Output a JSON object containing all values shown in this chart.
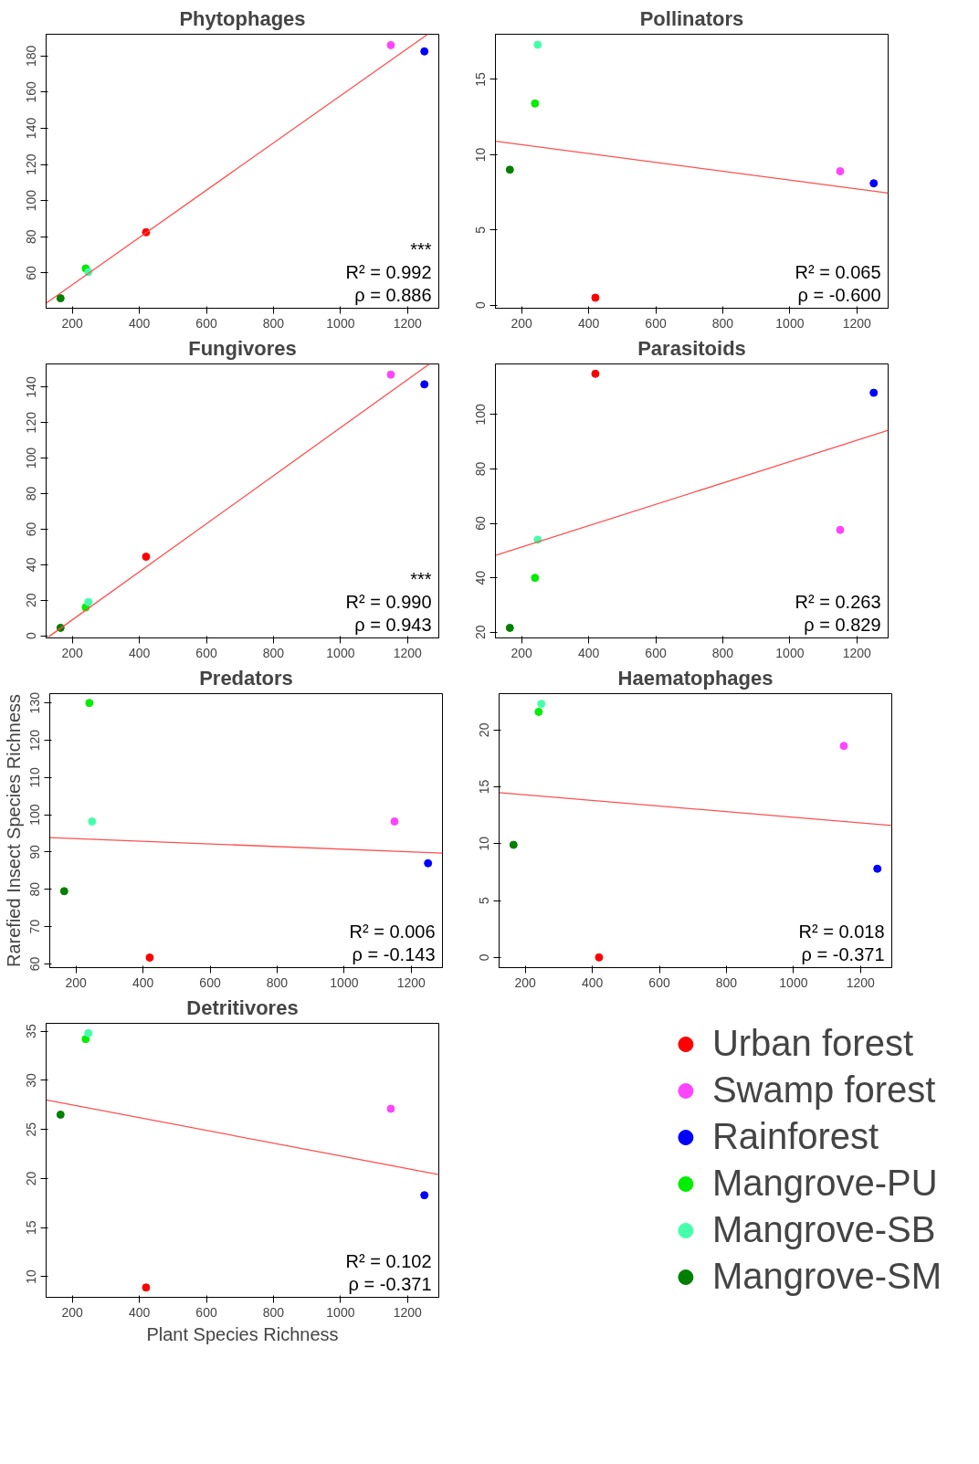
{
  "chart_data": [
    {
      "type": "scatter",
      "title": "Phytophages",
      "marker": "circle",
      "line_style": "solid",
      "xlim": [
        122,
        1293
      ],
      "ylim": [
        40.5,
        192
      ],
      "xticks": [
        200,
        400,
        600,
        800,
        1000,
        1200
      ],
      "yticks": [
        60,
        80,
        100,
        120,
        140,
        160,
        180
      ],
      "annotations": [
        "***",
        "R² = 0.992",
        "ρ = 0.886"
      ],
      "series": [
        {
          "color": "#ff0000",
          "x": [
            420
          ],
          "values": [
            82.5
          ]
        },
        {
          "color": "#ff44ff",
          "x": [
            1150
          ],
          "values": [
            186
          ]
        },
        {
          "color": "#0000ff",
          "x": [
            1250
          ],
          "values": [
            182.5
          ]
        },
        {
          "color": "#00ee00",
          "x": [
            240
          ],
          "values": [
            62.5
          ]
        },
        {
          "color": "#44ffaa",
          "x": [
            248
          ],
          "values": [
            60.5
          ]
        },
        {
          "color": "#008000",
          "x": [
            165
          ],
          "values": [
            46
          ]
        },
        {
          "type": "line",
          "marker": "none",
          "color": "#ff5050",
          "x": [
            122,
            1260
          ],
          "values": [
            43.3,
            192
          ]
        }
      ]
    },
    {
      "type": "scatter",
      "title": "Pollinators",
      "marker": "circle",
      "line_style": "solid",
      "xlim": [
        122,
        1293
      ],
      "ylim": [
        -0.2,
        18
      ],
      "xticks": [
        200,
        400,
        600,
        800,
        1000,
        1200
      ],
      "yticks": [
        0,
        5,
        10,
        15
      ],
      "annotations": [
        "R² = 0.065",
        "ρ = -0.600"
      ],
      "series": [
        {
          "color": "#ff0000",
          "x": [
            420
          ],
          "values": [
            0.5
          ]
        },
        {
          "color": "#ff44ff",
          "x": [
            1150
          ],
          "values": [
            8.9
          ]
        },
        {
          "color": "#0000ff",
          "x": [
            1250
          ],
          "values": [
            8.1
          ]
        },
        {
          "color": "#00ee00",
          "x": [
            240
          ],
          "values": [
            13.4
          ]
        },
        {
          "color": "#44ffaa",
          "x": [
            248
          ],
          "values": [
            17.3
          ]
        },
        {
          "color": "#008000",
          "x": [
            165
          ],
          "values": [
            9.0
          ]
        },
        {
          "type": "line",
          "marker": "none",
          "color": "#ff5050",
          "x": [
            122,
            1293
          ],
          "values": [
            10.9,
            7.45
          ]
        }
      ]
    },
    {
      "type": "scatter",
      "title": "Fungivores",
      "marker": "circle",
      "line_style": "solid",
      "xlim": [
        122,
        1293
      ],
      "ylim": [
        -1.2,
        153
      ],
      "xticks": [
        200,
        400,
        600,
        800,
        1000,
        1200
      ],
      "yticks": [
        0,
        20,
        40,
        60,
        80,
        100,
        120,
        140
      ],
      "annotations": [
        "***",
        "R² = 0.990",
        "ρ = 0.943"
      ],
      "series": [
        {
          "color": "#ff0000",
          "x": [
            420
          ],
          "values": [
            44.5
          ]
        },
        {
          "color": "#ff44ff",
          "x": [
            1150
          ],
          "values": [
            147
          ]
        },
        {
          "color": "#0000ff",
          "x": [
            1250
          ],
          "values": [
            141.5
          ]
        },
        {
          "color": "#00ee00",
          "x": [
            240
          ],
          "values": [
            16
          ]
        },
        {
          "color": "#44ffaa",
          "x": [
            248
          ],
          "values": [
            19
          ]
        },
        {
          "color": "#008000",
          "x": [
            165
          ],
          "values": [
            4.5
          ]
        },
        {
          "type": "line",
          "marker": "none",
          "color": "#ff5050",
          "x": [
            130,
            1265
          ],
          "values": [
            -0.5,
            153
          ]
        }
      ]
    },
    {
      "type": "scatter",
      "title": "Parasitoids",
      "marker": "circle",
      "line_style": "solid",
      "xlim": [
        122,
        1293
      ],
      "ylim": [
        17.9,
        118.6
      ],
      "xticks": [
        200,
        400,
        600,
        800,
        1000,
        1200
      ],
      "yticks": [
        20,
        40,
        60,
        80,
        100
      ],
      "annotations": [
        "R² = 0.263",
        "ρ = 0.829"
      ],
      "series": [
        {
          "color": "#ff0000",
          "x": [
            420
          ],
          "values": [
            115
          ]
        },
        {
          "color": "#ff44ff",
          "x": [
            1150
          ],
          "values": [
            57.6
          ]
        },
        {
          "color": "#0000ff",
          "x": [
            1250
          ],
          "values": [
            108
          ]
        },
        {
          "color": "#00ee00",
          "x": [
            240
          ],
          "values": [
            40
          ]
        },
        {
          "color": "#44ffaa",
          "x": [
            248
          ],
          "values": [
            54
          ]
        },
        {
          "color": "#008000",
          "x": [
            165
          ],
          "values": [
            21.6
          ]
        },
        {
          "type": "line",
          "marker": "none",
          "color": "#ff5050",
          "x": [
            122,
            1293
          ],
          "values": [
            48.2,
            94.2
          ]
        }
      ]
    },
    {
      "type": "scatter",
      "title": "Predators",
      "ylabel": "Rarefied Insect Species Richness",
      "marker": "circle",
      "line_style": "solid",
      "xlim": [
        122,
        1293
      ],
      "ylim": [
        59,
        132.5
      ],
      "xticks": [
        200,
        400,
        600,
        800,
        1000,
        1200
      ],
      "yticks": [
        60,
        70,
        80,
        90,
        100,
        110,
        120,
        130
      ],
      "annotations": [
        "R² = 0.006",
        "ρ = -0.143"
      ],
      "series": [
        {
          "color": "#ff0000",
          "x": [
            420
          ],
          "values": [
            61.7
          ]
        },
        {
          "color": "#ff44ff",
          "x": [
            1150
          ],
          "values": [
            98.2
          ]
        },
        {
          "color": "#0000ff",
          "x": [
            1250
          ],
          "values": [
            87
          ]
        },
        {
          "color": "#00ee00",
          "x": [
            240
          ],
          "values": [
            130
          ]
        },
        {
          "color": "#44ffaa",
          "x": [
            248
          ],
          "values": [
            98.2
          ]
        },
        {
          "color": "#008000",
          "x": [
            165
          ],
          "values": [
            79.5
          ]
        },
        {
          "type": "line",
          "marker": "none",
          "color": "#ff5050",
          "x": [
            122,
            1293
          ],
          "values": [
            93.9,
            89.7
          ]
        }
      ]
    },
    {
      "type": "scatter",
      "title": "Haematophages",
      "marker": "circle",
      "line_style": "solid",
      "xlim": [
        122,
        1293
      ],
      "ylim": [
        -0.9,
        23.2
      ],
      "xticks": [
        200,
        400,
        600,
        800,
        1000,
        1200
      ],
      "yticks": [
        0,
        5,
        10,
        15,
        20
      ],
      "annotations": [
        "R² = 0.018",
        "ρ = -0.371"
      ],
      "series": [
        {
          "color": "#ff0000",
          "x": [
            420
          ],
          "values": [
            0
          ]
        },
        {
          "color": "#ff44ff",
          "x": [
            1150
          ],
          "values": [
            18.6
          ]
        },
        {
          "color": "#0000ff",
          "x": [
            1250
          ],
          "values": [
            7.8
          ]
        },
        {
          "color": "#00ee00",
          "x": [
            240
          ],
          "values": [
            21.6
          ]
        },
        {
          "color": "#44ffaa",
          "x": [
            248
          ],
          "values": [
            22.3
          ]
        },
        {
          "color": "#008000",
          "x": [
            165
          ],
          "values": [
            9.9
          ]
        },
        {
          "type": "line",
          "marker": "none",
          "color": "#ff5050",
          "x": [
            122,
            1293
          ],
          "values": [
            14.5,
            11.6
          ]
        }
      ]
    },
    {
      "type": "scatter",
      "title": "Detritivores",
      "xlabel": "Plant Species Richness",
      "legend": "right",
      "marker": "circle",
      "line_style": "solid",
      "xlim": [
        122,
        1293
      ],
      "ylim": [
        7.9,
        35.8
      ],
      "xticks": [
        200,
        400,
        600,
        800,
        1000,
        1200
      ],
      "yticks": [
        10,
        15,
        20,
        25,
        30,
        35
      ],
      "annotations": [
        "R² = 0.102",
        "ρ = -0.371"
      ],
      "series": [
        {
          "name": "Urban forest",
          "color": "#ff0000",
          "x": [
            420
          ],
          "values": [
            8.9
          ]
        },
        {
          "name": "Swamp forest",
          "color": "#ff44ff",
          "x": [
            1150
          ],
          "values": [
            27.1
          ]
        },
        {
          "name": "Rainforest",
          "color": "#0000ff",
          "x": [
            1250
          ],
          "values": [
            18.3
          ]
        },
        {
          "name": "Mangrove-PU",
          "color": "#00ee00",
          "x": [
            240
          ],
          "values": [
            34.2
          ]
        },
        {
          "name": "Mangrove-SB",
          "color": "#44ffaa",
          "x": [
            248
          ],
          "values": [
            34.8
          ]
        },
        {
          "name": "Mangrove-SM",
          "color": "#008000",
          "x": [
            165
          ],
          "values": [
            26.5
          ]
        },
        {
          "type": "line",
          "marker": "none",
          "color": "#ff5050",
          "x": [
            122,
            1293
          ],
          "values": [
            28.0,
            20.4
          ]
        }
      ]
    }
  ]
}
